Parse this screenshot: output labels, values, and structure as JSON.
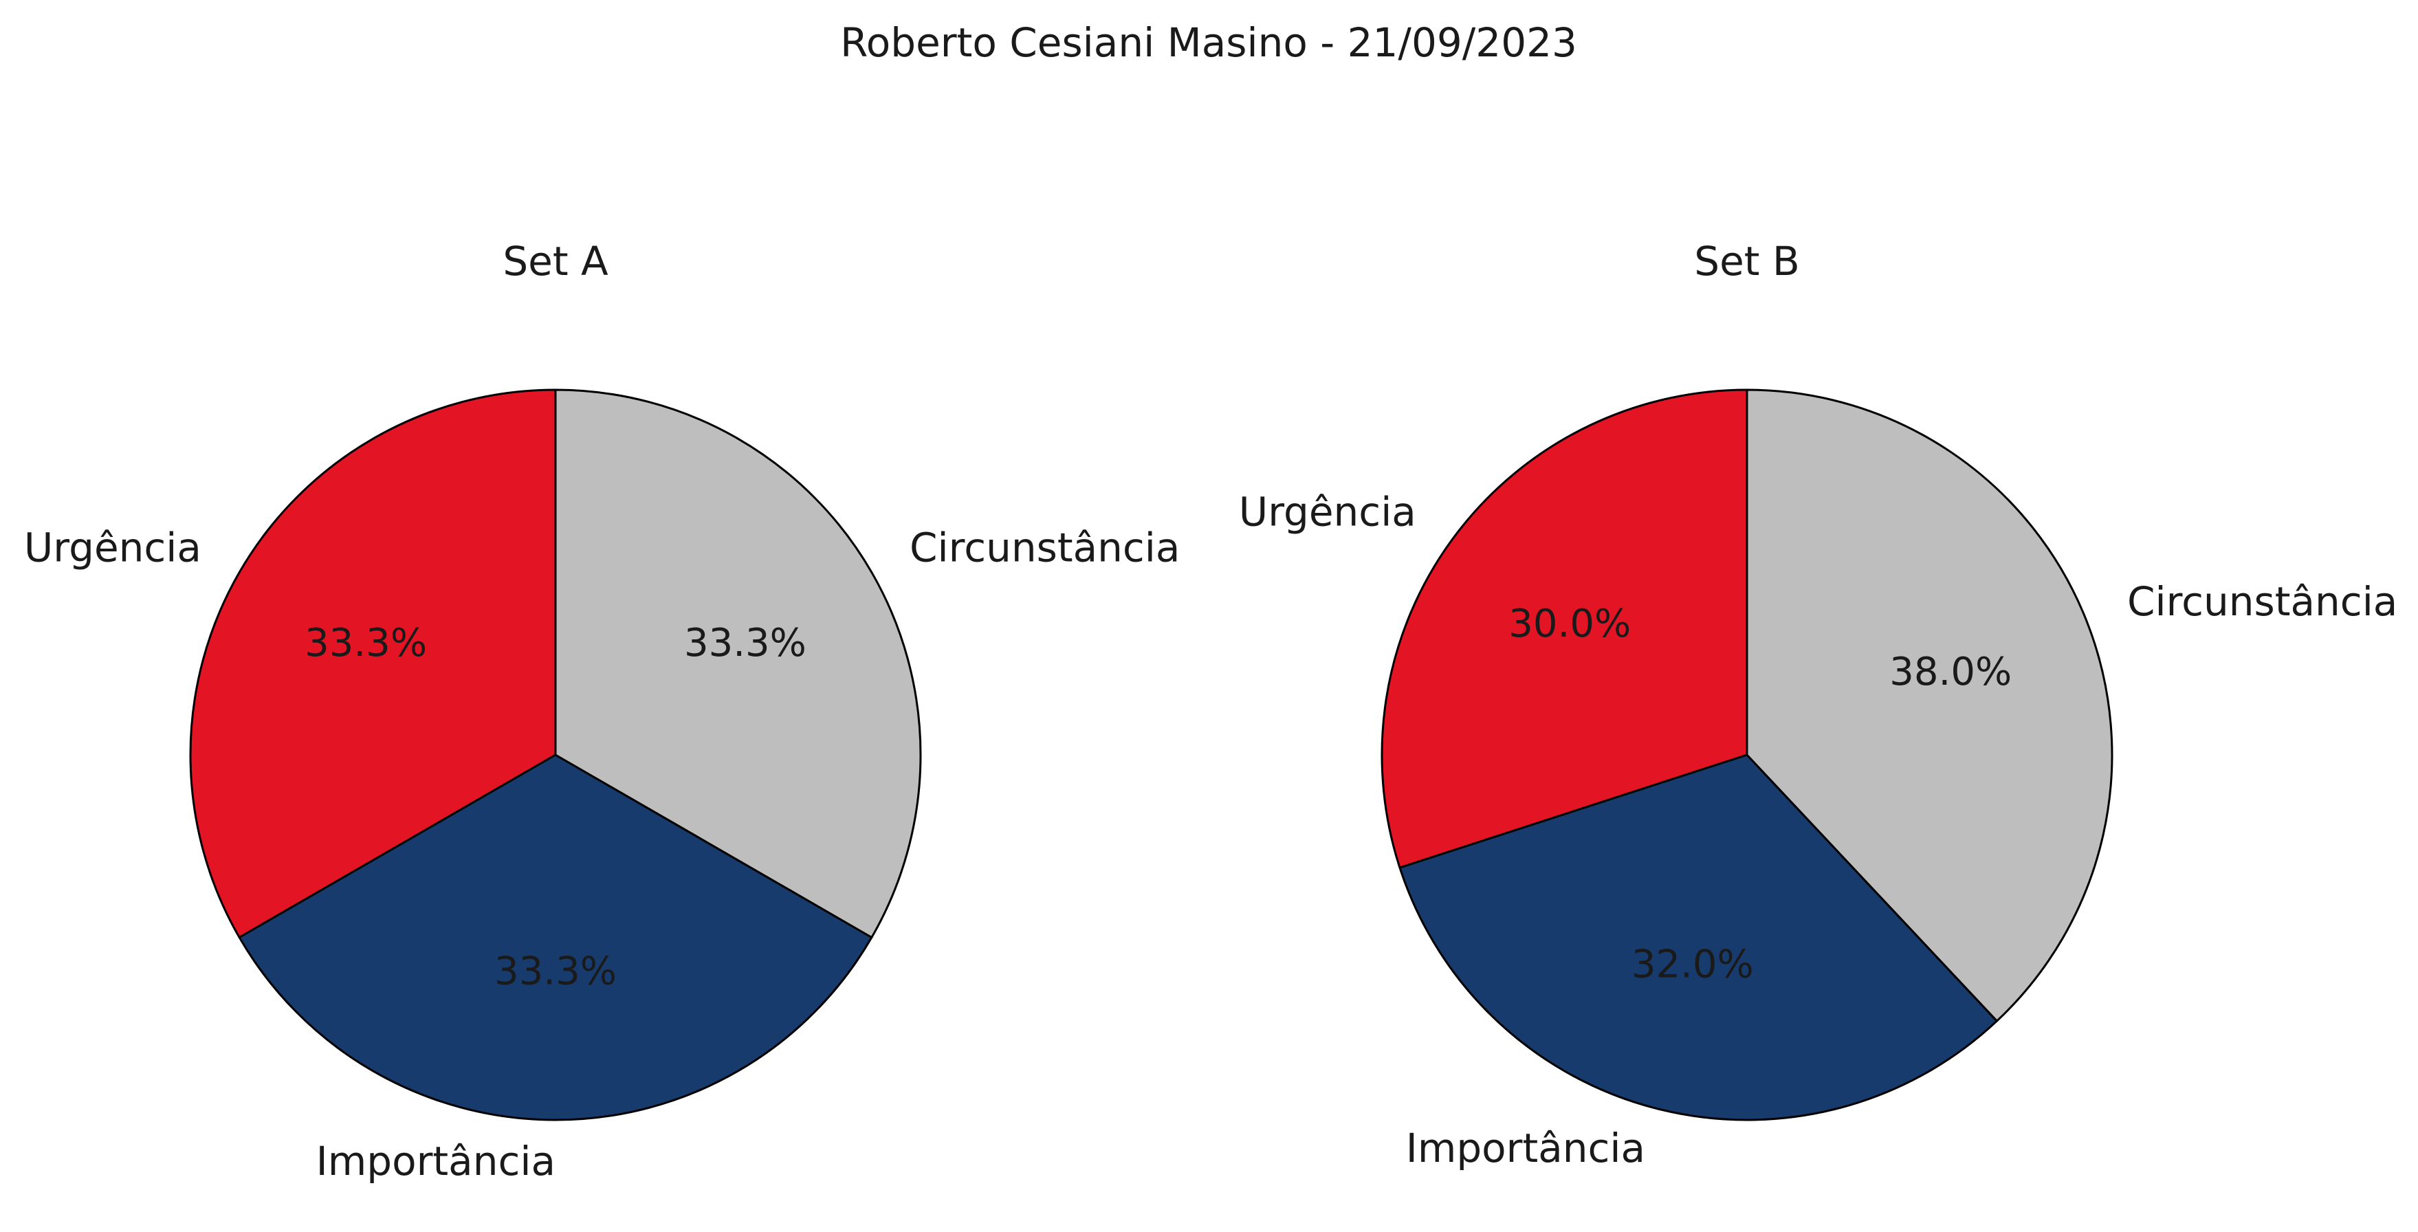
{
  "figure_title": "Roberto Cesiani Masino - 21/09/2023",
  "chart_data": [
    {
      "type": "pie",
      "title": "Set A",
      "labels": [
        "Urgência",
        "Importância",
        "Circunstância"
      ],
      "values": [
        33.3,
        33.3,
        33.3
      ],
      "percent_labels": [
        "33.3%",
        "33.3%",
        "33.3%"
      ],
      "colors": [
        "#e31525",
        "#183b6d",
        "#bdbebd"
      ],
      "start_angle_deg": 90,
      "direction": "counterclockwise"
    },
    {
      "type": "pie",
      "title": "Set B",
      "labels": [
        "Urgência",
        "Importância",
        "Circunstância"
      ],
      "values": [
        30.0,
        32.0,
        38.0
      ],
      "percent_labels": [
        "30.0%",
        "32.0%",
        "38.0%"
      ],
      "colors": [
        "#e31525",
        "#183b6d",
        "#bdbebd"
      ],
      "start_angle_deg": 90,
      "direction": "counterclockwise"
    }
  ]
}
